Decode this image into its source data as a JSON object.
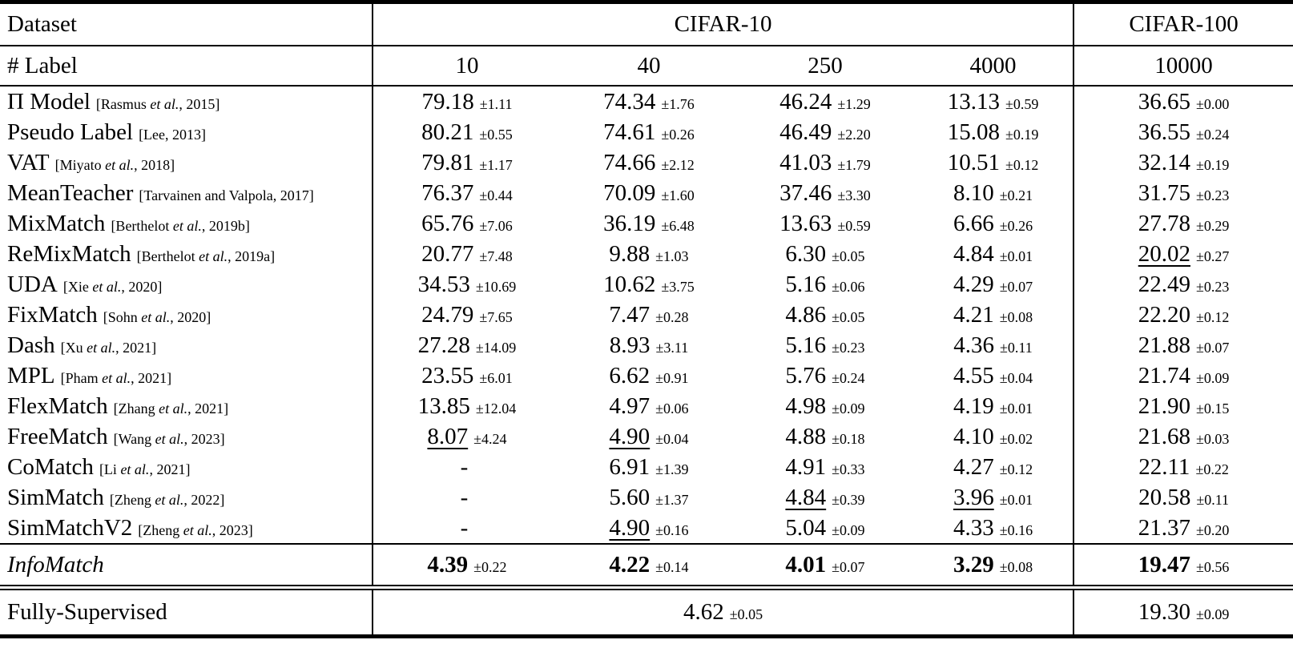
{
  "table": {
    "header": {
      "dataset_label": "Dataset",
      "group_cifar10": "CIFAR-10",
      "group_cifar100": "CIFAR-100",
      "num_label": "# Label",
      "label_counts": [
        "10",
        "40",
        "250",
        "4000",
        "10000"
      ]
    },
    "rows": [
      {
        "name": "Π Model",
        "cite_pre": "[Rasmus ",
        "cite_etal": "et al.",
        "cite_post": ", 2015]",
        "cells": [
          {
            "v": "79.18",
            "pm": "±1.11"
          },
          {
            "v": "74.34",
            "pm": "±1.76"
          },
          {
            "v": "46.24",
            "pm": "±1.29"
          },
          {
            "v": "13.13",
            "pm": "±0.59"
          },
          {
            "v": "36.65",
            "pm": "±0.00"
          }
        ]
      },
      {
        "name": "Pseudo Label",
        "cite_pre": "[Lee, 2013]",
        "cite_etal": "",
        "cite_post": "",
        "cells": [
          {
            "v": "80.21",
            "pm": "±0.55"
          },
          {
            "v": "74.61",
            "pm": "±0.26"
          },
          {
            "v": "46.49",
            "pm": "±2.20"
          },
          {
            "v": "15.08",
            "pm": "±0.19"
          },
          {
            "v": "36.55",
            "pm": "±0.24"
          }
        ]
      },
      {
        "name": "VAT",
        "cite_pre": "[Miyato ",
        "cite_etal": "et al.",
        "cite_post": ", 2018]",
        "cells": [
          {
            "v": "79.81",
            "pm": "±1.17"
          },
          {
            "v": "74.66",
            "pm": "±2.12"
          },
          {
            "v": "41.03",
            "pm": "±1.79"
          },
          {
            "v": "10.51",
            "pm": "±0.12"
          },
          {
            "v": "32.14",
            "pm": "±0.19"
          }
        ]
      },
      {
        "name": "MeanTeacher",
        "cite_pre": "[Tarvainen and Valpola, 2017]",
        "cite_etal": "",
        "cite_post": "",
        "cells": [
          {
            "v": "76.37",
            "pm": "±0.44"
          },
          {
            "v": "70.09",
            "pm": "±1.60"
          },
          {
            "v": "37.46",
            "pm": "±3.30"
          },
          {
            "v": "8.10",
            "pm": "±0.21"
          },
          {
            "v": "31.75",
            "pm": "±0.23"
          }
        ]
      },
      {
        "name": "MixMatch",
        "cite_pre": "[Berthelot ",
        "cite_etal": "et al.",
        "cite_post": ", 2019b]",
        "cells": [
          {
            "v": "65.76",
            "pm": "±7.06"
          },
          {
            "v": "36.19",
            "pm": "±6.48"
          },
          {
            "v": "13.63",
            "pm": "±0.59"
          },
          {
            "v": "6.66",
            "pm": "±0.26"
          },
          {
            "v": "27.78",
            "pm": "±0.29"
          }
        ]
      },
      {
        "name": "ReMixMatch",
        "cite_pre": "[Berthelot ",
        "cite_etal": "et al.",
        "cite_post": ", 2019a]",
        "cells": [
          {
            "v": "20.77",
            "pm": "±7.48"
          },
          {
            "v": "9.88",
            "pm": "±1.03"
          },
          {
            "v": "6.30",
            "pm": "±0.05"
          },
          {
            "v": "4.84",
            "pm": "±0.01"
          },
          {
            "v": "20.02",
            "pm": "±0.27",
            "u": true
          }
        ]
      },
      {
        "name": "UDA",
        "cite_pre": "[Xie ",
        "cite_etal": "et al.",
        "cite_post": ", 2020]",
        "cells": [
          {
            "v": "34.53",
            "pm": "±10.69"
          },
          {
            "v": "10.62",
            "pm": "±3.75"
          },
          {
            "v": "5.16",
            "pm": "±0.06"
          },
          {
            "v": "4.29",
            "pm": "±0.07"
          },
          {
            "v": "22.49",
            "pm": "±0.23"
          }
        ]
      },
      {
        "name": "FixMatch",
        "cite_pre": "[Sohn ",
        "cite_etal": "et al.",
        "cite_post": ", 2020]",
        "cells": [
          {
            "v": "24.79",
            "pm": "±7.65"
          },
          {
            "v": "7.47",
            "pm": "±0.28"
          },
          {
            "v": "4.86",
            "pm": "±0.05"
          },
          {
            "v": "4.21",
            "pm": "±0.08"
          },
          {
            "v": "22.20",
            "pm": "±0.12"
          }
        ]
      },
      {
        "name": "Dash",
        "cite_pre": "[Xu ",
        "cite_etal": "et al.",
        "cite_post": ", 2021]",
        "cells": [
          {
            "v": "27.28",
            "pm": "±14.09"
          },
          {
            "v": "8.93",
            "pm": "±3.11"
          },
          {
            "v": "5.16",
            "pm": "±0.23"
          },
          {
            "v": "4.36",
            "pm": "±0.11"
          },
          {
            "v": "21.88",
            "pm": "±0.07"
          }
        ]
      },
      {
        "name": "MPL",
        "cite_pre": "[Pham ",
        "cite_etal": "et al.",
        "cite_post": ", 2021]",
        "cells": [
          {
            "v": "23.55",
            "pm": "±6.01"
          },
          {
            "v": "6.62",
            "pm": "±0.91"
          },
          {
            "v": "5.76",
            "pm": "±0.24"
          },
          {
            "v": "4.55",
            "pm": "±0.04"
          },
          {
            "v": "21.74",
            "pm": "±0.09"
          }
        ]
      },
      {
        "name": "FlexMatch",
        "cite_pre": "[Zhang ",
        "cite_etal": "et al.",
        "cite_post": ", 2021]",
        "cells": [
          {
            "v": "13.85",
            "pm": "±12.04"
          },
          {
            "v": "4.97",
            "pm": "±0.06"
          },
          {
            "v": "4.98",
            "pm": "±0.09"
          },
          {
            "v": "4.19",
            "pm": "±0.01"
          },
          {
            "v": "21.90",
            "pm": "±0.15"
          }
        ]
      },
      {
        "name": "FreeMatch",
        "cite_pre": "[Wang ",
        "cite_etal": "et al.",
        "cite_post": ", 2023]",
        "cells": [
          {
            "v": "8.07",
            "pm": "±4.24",
            "u": true
          },
          {
            "v": "4.90",
            "pm": "±0.04",
            "u": true
          },
          {
            "v": "4.88",
            "pm": "±0.18"
          },
          {
            "v": "4.10",
            "pm": "±0.02"
          },
          {
            "v": "21.68",
            "pm": "±0.03"
          }
        ]
      },
      {
        "name": "CoMatch",
        "cite_pre": "[Li ",
        "cite_etal": "et al.",
        "cite_post": ", 2021]",
        "cells": [
          {
            "v": "-",
            "pm": ""
          },
          {
            "v": "6.91",
            "pm": "±1.39"
          },
          {
            "v": "4.91",
            "pm": "±0.33"
          },
          {
            "v": "4.27",
            "pm": "±0.12"
          },
          {
            "v": "22.11",
            "pm": "±0.22"
          }
        ]
      },
      {
        "name": "SimMatch",
        "cite_pre": "[Zheng ",
        "cite_etal": "et al.",
        "cite_post": ", 2022]",
        "cells": [
          {
            "v": "-",
            "pm": ""
          },
          {
            "v": "5.60",
            "pm": "±1.37"
          },
          {
            "v": "4.84",
            "pm": "±0.39",
            "u": true
          },
          {
            "v": "3.96",
            "pm": "±0.01",
            "u": true
          },
          {
            "v": "20.58",
            "pm": "±0.11"
          }
        ]
      },
      {
        "name": "SimMatchV2",
        "cite_pre": "[Zheng ",
        "cite_etal": "et al.",
        "cite_post": ", 2023]",
        "cells": [
          {
            "v": "-",
            "pm": ""
          },
          {
            "v": "4.90",
            "pm": "±0.16",
            "u": true
          },
          {
            "v": "5.04",
            "pm": "±0.09"
          },
          {
            "v": "4.33",
            "pm": "±0.16"
          },
          {
            "v": "21.37",
            "pm": "±0.20"
          }
        ]
      }
    ],
    "infomatch": {
      "name": "InfoMatch",
      "cells": [
        {
          "v": "4.39",
          "pm": "±0.22"
        },
        {
          "v": "4.22",
          "pm": "±0.14"
        },
        {
          "v": "4.01",
          "pm": "±0.07"
        },
        {
          "v": "3.29",
          "pm": "±0.08"
        },
        {
          "v": "19.47",
          "pm": "±0.56"
        }
      ]
    },
    "fully_supervised": {
      "name": "Fully-Supervised",
      "cifar10": {
        "v": "4.62",
        "pm": "±0.05"
      },
      "cifar100": {
        "v": "19.30",
        "pm": "±0.09"
      }
    }
  }
}
